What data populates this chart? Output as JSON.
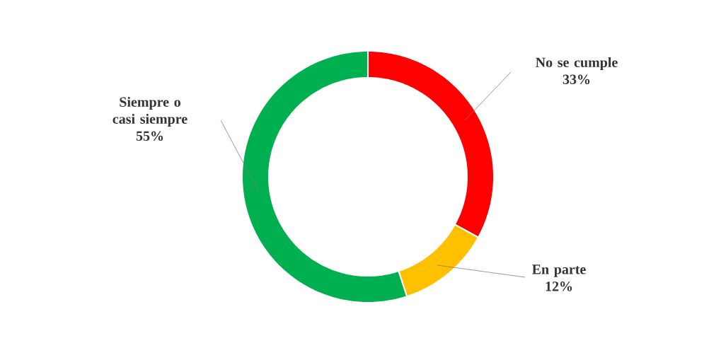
{
  "chart_data": {
    "type": "donut",
    "categories": [
      "No se cumple",
      "En parte",
      "Siempre o casi siempre"
    ],
    "values": [
      33,
      12,
      55
    ],
    "value_labels": [
      "33%",
      "12%",
      "55%"
    ],
    "colors": [
      "#ff0000",
      "#ffc000",
      "#00b050"
    ]
  }
}
